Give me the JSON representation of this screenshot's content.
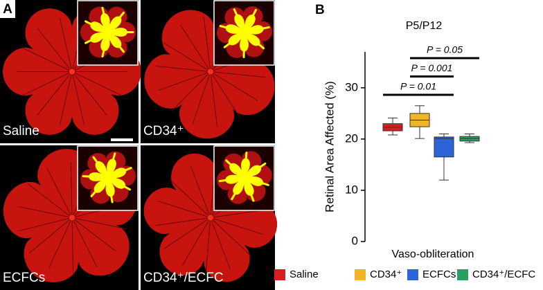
{
  "panel_a": {
    "label": "A",
    "images": [
      {
        "label": "Saline"
      },
      {
        "label": "CD34⁺"
      },
      {
        "label": "ECFCs"
      },
      {
        "label": "CD34⁺/ECFC"
      }
    ]
  },
  "chart_data": {
    "type": "box",
    "label": "B",
    "title": "P5/P12",
    "y_label": "Retinal Area Affected (%)",
    "x_label": "Vaso-obliteration",
    "categories": [
      "Saline",
      "CD34⁺",
      "ECFCs",
      "CD34⁺/ECFC"
    ],
    "colors": [
      "#d42020",
      "#f0b428",
      "#2f63d8",
      "#2aa060"
    ],
    "min": [
      20.8,
      20.1,
      12.0,
      19.3
    ],
    "q1": [
      21.6,
      22.4,
      16.5,
      19.6
    ],
    "median": [
      22.3,
      23.7,
      20.1,
      20.1
    ],
    "q3": [
      23.0,
      25.0,
      20.4,
      20.5
    ],
    "max": [
      24.1,
      26.5,
      21.0,
      21.0
    ],
    "ylim": [
      0,
      37
    ],
    "yticks": [
      0,
      10,
      20,
      30
    ],
    "annotations": [
      {
        "text": "P = 0.05",
        "between": [
          "CD34⁺",
          "CD34⁺/ECFC"
        ]
      },
      {
        "text": "P = 0.001",
        "between": [
          "CD34⁺",
          "ECFCs"
        ]
      },
      {
        "text": "P = 0.01",
        "between": [
          "Saline",
          "ECFCs"
        ]
      }
    ]
  }
}
